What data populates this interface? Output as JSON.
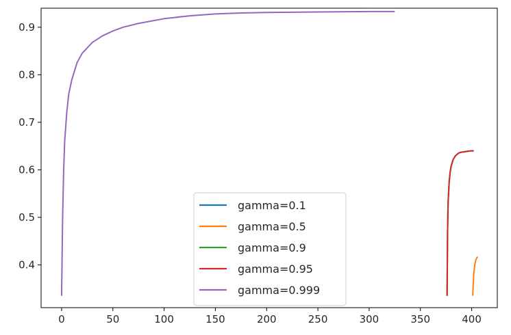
{
  "chart_data": {
    "type": "line",
    "title": "",
    "xlabel": "",
    "ylabel": "",
    "xlim": [
      -20,
      425
    ],
    "ylim": [
      0.31,
      0.94
    ],
    "xticks": [
      0,
      50,
      100,
      150,
      200,
      250,
      300,
      350,
      400
    ],
    "yticks": [
      0.4,
      0.5,
      0.6,
      0.7,
      0.8,
      0.9
    ],
    "grid": false,
    "legend_position": "lower-center",
    "series": [
      {
        "name": "gamma=0.1",
        "color": "#1f77b4",
        "x": [
          376,
          376.5,
          377,
          378,
          379,
          380,
          382,
          384,
          386,
          388,
          390,
          393,
          396,
          400,
          402
        ],
        "y": [
          0.335,
          0.47,
          0.53,
          0.573,
          0.595,
          0.608,
          0.622,
          0.629,
          0.633,
          0.636,
          0.637,
          0.638,
          0.639,
          0.64,
          0.64
        ]
      },
      {
        "name": "gamma=0.5",
        "color": "#ff7f0e",
        "x": [
          401,
          402,
          403,
          404,
          405,
          406
        ],
        "y": [
          0.335,
          0.38,
          0.4,
          0.41,
          0.415,
          0.417
        ]
      },
      {
        "name": "gamma=0.9",
        "color": "#2ca02c",
        "x": [
          376,
          376.5,
          377,
          378,
          379,
          380,
          382,
          384,
          386,
          388,
          390,
          393,
          396,
          400,
          402
        ],
        "y": [
          0.335,
          0.47,
          0.53,
          0.573,
          0.595,
          0.608,
          0.622,
          0.629,
          0.633,
          0.636,
          0.637,
          0.638,
          0.639,
          0.64,
          0.64
        ]
      },
      {
        "name": "gamma=0.95",
        "color": "#d62728",
        "x": [
          376,
          376.5,
          377,
          378,
          379,
          380,
          382,
          384,
          386,
          388,
          390,
          393,
          396,
          400,
          402
        ],
        "y": [
          0.335,
          0.47,
          0.53,
          0.573,
          0.595,
          0.608,
          0.622,
          0.629,
          0.633,
          0.636,
          0.637,
          0.638,
          0.639,
          0.64,
          0.64
        ]
      },
      {
        "name": "gamma=0.999",
        "color": "#9467bd",
        "x": [
          0,
          1,
          2,
          3,
          5,
          7,
          10,
          15,
          20,
          30,
          40,
          50,
          60,
          75,
          100,
          125,
          150,
          175,
          200,
          250,
          300,
          325
        ],
        "y": [
          0.335,
          0.5,
          0.6,
          0.66,
          0.72,
          0.76,
          0.79,
          0.825,
          0.845,
          0.868,
          0.882,
          0.892,
          0.9,
          0.908,
          0.918,
          0.924,
          0.928,
          0.93,
          0.931,
          0.932,
          0.933,
          0.933
        ]
      }
    ]
  }
}
